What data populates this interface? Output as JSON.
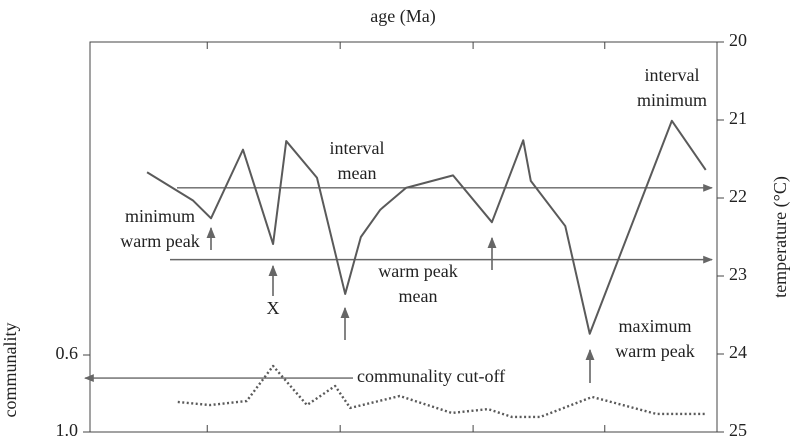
{
  "chart_data": {
    "type": "line",
    "x_label": "age (Ma)",
    "xlim": [
      0,
      100
    ],
    "xticks": [
      18.7,
      39.9,
      61.1,
      82.1
    ],
    "y_label": "temperature (°C)",
    "ylim": [
      20,
      25
    ],
    "yticks": [
      20,
      21,
      22,
      23,
      24,
      25
    ],
    "y_inverted": true,
    "y2_label": "communality",
    "y2lim": [
      0.6,
      1.0
    ],
    "y2ticks": [
      0.6,
      {
        "value": 1.0,
        "label": "1.0"
      }
    ],
    "y2_inverted": true,
    "series": [
      {
        "color": "#5a5a5a",
        "style": "solid",
        "x": [
          9.1,
          16.4,
          19.3,
          24.4,
          29.2,
          31.3,
          36.2,
          40.7,
          43.2,
          46.3,
          50.4,
          57.9,
          64.1,
          69.1,
          70.3,
          75.8,
          79.7,
          92.8,
          98.2
        ],
        "values": [
          21.67,
          22.03,
          22.26,
          21.38,
          22.59,
          21.27,
          21.74,
          23.23,
          22.5,
          22.15,
          21.87,
          21.71,
          22.31,
          21.26,
          21.78,
          22.36,
          23.74,
          21.01,
          21.64
        ]
      },
      {
        "color": "#5a5a5a",
        "style": "dotted",
        "axis": "y2",
        "x": [
          14.0,
          19.1,
          25.0,
          29.2,
          34.6,
          39.1,
          41.5,
          49.4,
          57.7,
          63.5,
          67.3,
          71.8,
          80.1,
          90.3,
          98.1
        ],
        "values": [
          0.844,
          0.86,
          0.839,
          0.657,
          0.86,
          0.761,
          0.875,
          0.813,
          0.901,
          0.881,
          0.922,
          0.922,
          0.818,
          0.906,
          0.906
        ]
      }
    ],
    "reference_lines": [
      {
        "value": 21.87
      },
      {
        "value": 22.79
      },
      {
        "value": 0.72,
        "axis": "y2",
        "label": "communality cut-off"
      }
    ],
    "annotations": [
      {
        "text": [
          "minimum",
          "warm peak"
        ]
      },
      {
        "text": [
          "X"
        ]
      },
      {
        "text": [
          "interval",
          "mean"
        ]
      },
      {
        "text": [
          "warm peak",
          "mean"
        ]
      },
      {
        "text": [
          "interval",
          "minimum"
        ]
      },
      {
        "text": [
          "maximum",
          "warm peak"
        ]
      }
    ]
  }
}
